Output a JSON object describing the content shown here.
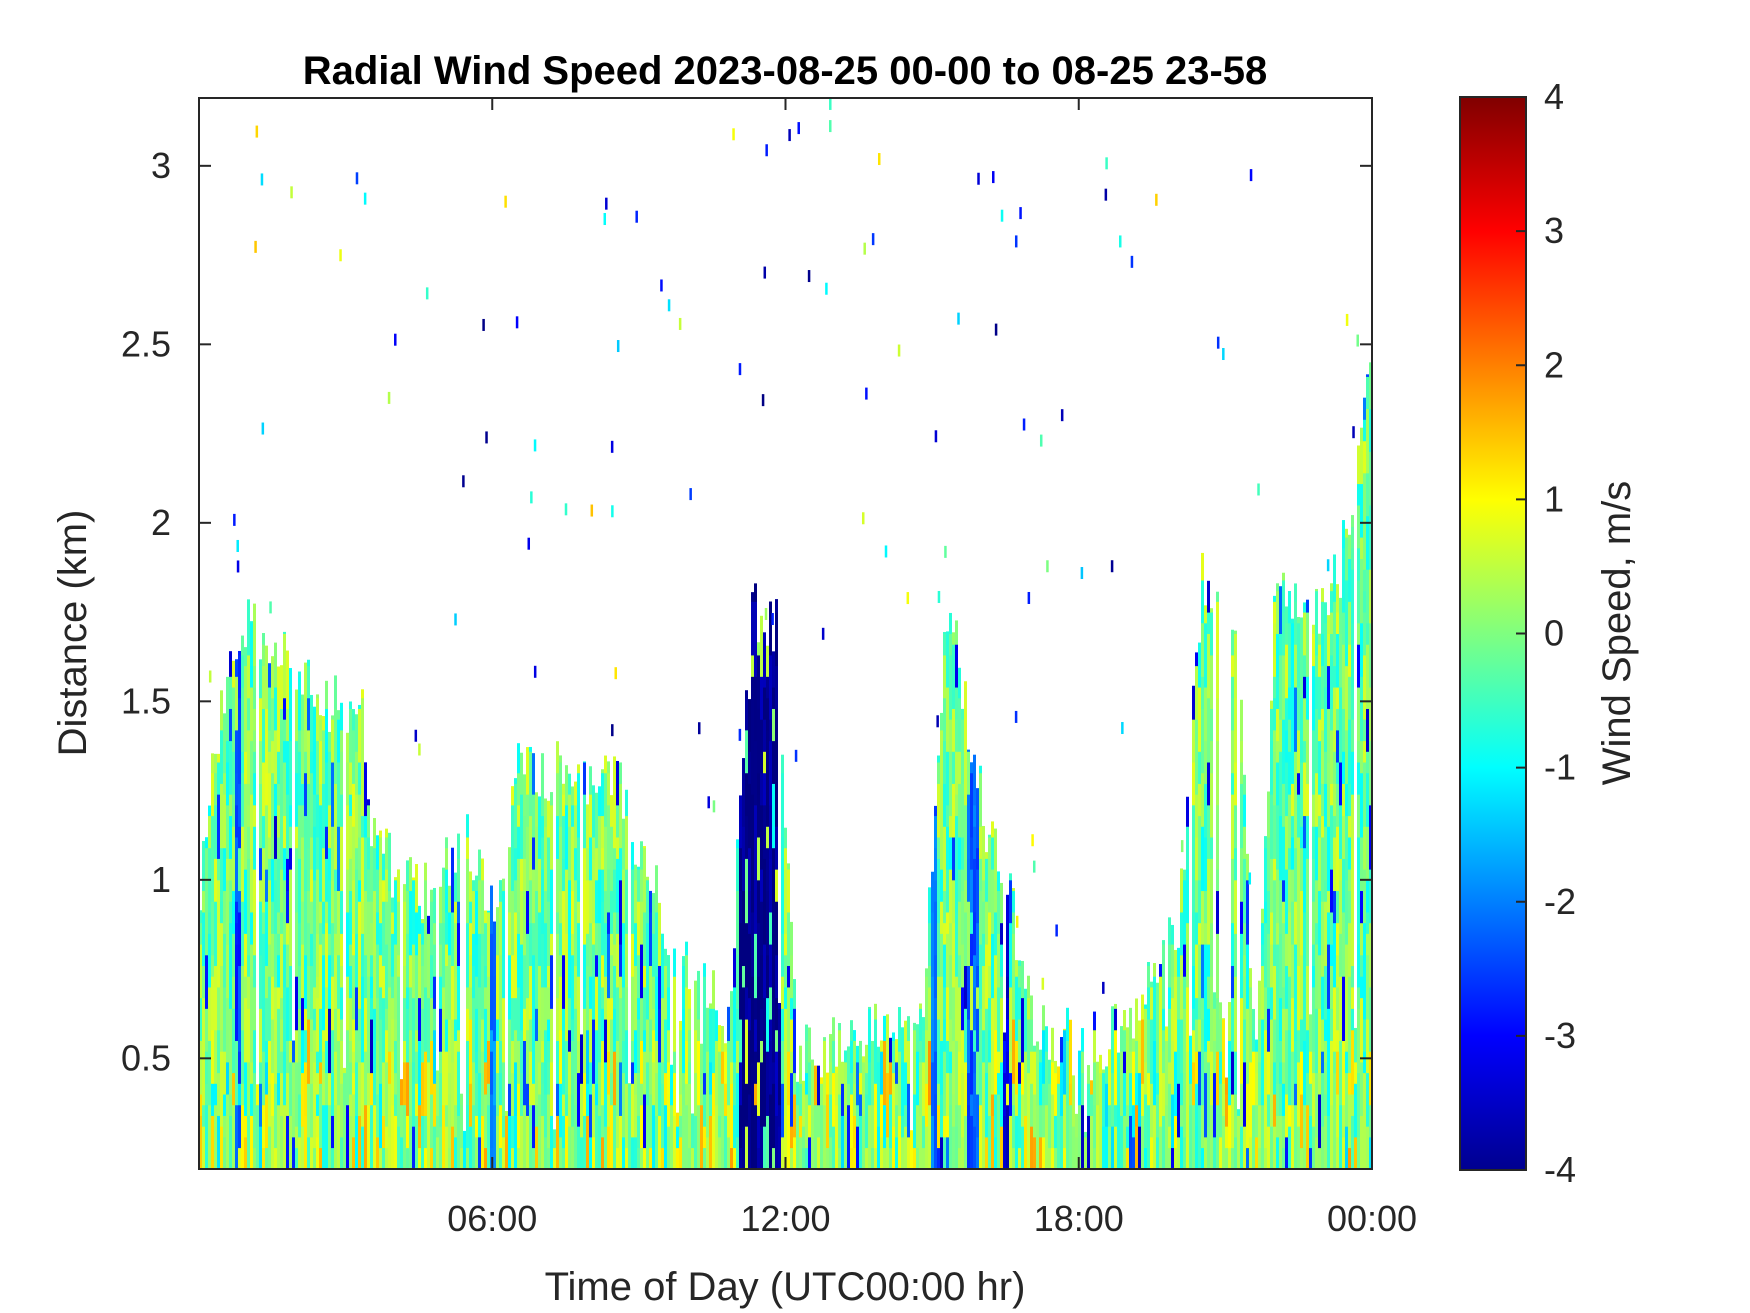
{
  "chart_data": {
    "type": "heatmap",
    "title": "Radial Wind Speed 2023-08-25 00-00 to 08-25 23-58",
    "xlabel": "Time of Day (UTC00:00 hr)",
    "ylabel": "Distance (km)",
    "colorbar_label": "Wind Speed, m/s",
    "x_range_hours": [
      0,
      24
    ],
    "y_range_km": [
      0.19,
      3.19
    ],
    "c_range": [
      -4,
      4
    ],
    "colormap": "jet",
    "x_ticks": [
      {
        "value": 6,
        "label": "06:00"
      },
      {
        "value": 12,
        "label": "12:00"
      },
      {
        "value": 18,
        "label": "18:00"
      },
      {
        "value": 24,
        "label": "00:00"
      }
    ],
    "y_ticks": [
      {
        "value": 0.5,
        "label": "0.5"
      },
      {
        "value": 1,
        "label": "1"
      },
      {
        "value": 1.5,
        "label": "1.5"
      },
      {
        "value": 2,
        "label": "2"
      },
      {
        "value": 2.5,
        "label": "2.5"
      },
      {
        "value": 3,
        "label": "3"
      }
    ],
    "c_ticks": [
      {
        "value": 4,
        "label": "4"
      },
      {
        "value": 3,
        "label": "3"
      },
      {
        "value": 2,
        "label": "2"
      },
      {
        "value": 1,
        "label": "1"
      },
      {
        "value": 0,
        "label": "0"
      },
      {
        "value": -1,
        "label": "-1"
      },
      {
        "value": -2,
        "label": "-2"
      },
      {
        "value": -3,
        "label": "-3"
      },
      {
        "value": -4,
        "label": "-4"
      }
    ],
    "echo_top_profile_km": [
      {
        "t": 0.0,
        "top": 0.95
      },
      {
        "t": 0.2,
        "top": 1.25
      },
      {
        "t": 0.5,
        "top": 1.55
      },
      {
        "t": 1.0,
        "top": 1.72
      },
      {
        "t": 1.5,
        "top": 1.68
      },
      {
        "t": 2.0,
        "top": 1.55
      },
      {
        "t": 2.5,
        "top": 1.5
      },
      {
        "t": 3.3,
        "top": 1.48
      },
      {
        "t": 3.5,
        "top": 1.1
      },
      {
        "t": 4.5,
        "top": 0.95
      },
      {
        "t": 5.5,
        "top": 1.1
      },
      {
        "t": 6.0,
        "top": 0.9
      },
      {
        "t": 6.5,
        "top": 1.3
      },
      {
        "t": 7.5,
        "top": 1.3
      },
      {
        "t": 8.5,
        "top": 1.3
      },
      {
        "t": 9.0,
        "top": 1.05
      },
      {
        "t": 10.0,
        "top": 0.75
      },
      {
        "t": 10.8,
        "top": 0.6
      },
      {
        "t": 11.3,
        "top": 1.75
      },
      {
        "t": 11.8,
        "top": 1.7
      },
      {
        "t": 12.2,
        "top": 0.5
      },
      {
        "t": 13.0,
        "top": 0.55
      },
      {
        "t": 14.0,
        "top": 0.6
      },
      {
        "t": 14.8,
        "top": 0.7
      },
      {
        "t": 15.3,
        "top": 1.8
      },
      {
        "t": 16.0,
        "top": 1.2
      },
      {
        "t": 16.5,
        "top": 1.0
      },
      {
        "t": 17.0,
        "top": 0.6
      },
      {
        "t": 18.0,
        "top": 0.5
      },
      {
        "t": 19.0,
        "top": 0.6
      },
      {
        "t": 20.0,
        "top": 0.85
      },
      {
        "t": 20.5,
        "top": 1.85
      },
      {
        "t": 21.2,
        "top": 1.75
      },
      {
        "t": 21.6,
        "top": 0.45
      },
      {
        "t": 22.0,
        "top": 1.8
      },
      {
        "t": 22.8,
        "top": 1.75
      },
      {
        "t": 23.3,
        "top": 1.85
      },
      {
        "t": 23.7,
        "top": 2.2
      },
      {
        "t": 24.0,
        "top": 2.6
      }
    ],
    "strong_negative_bands_hours": [
      {
        "t0": 11.0,
        "t1": 11.9,
        "value": -3.9
      },
      {
        "t0": 14.95,
        "t1": 15.05,
        "value": -2.2
      },
      {
        "t0": 15.7,
        "t1": 15.95,
        "value": -2.3
      },
      {
        "t0": 16.45,
        "t1": 16.55,
        "value": -3.2
      },
      {
        "t0": 5.9,
        "t1": 6.05,
        "value": -2.0
      },
      {
        "t0": 0.7,
        "t1": 0.85,
        "value": -2.5
      }
    ]
  }
}
